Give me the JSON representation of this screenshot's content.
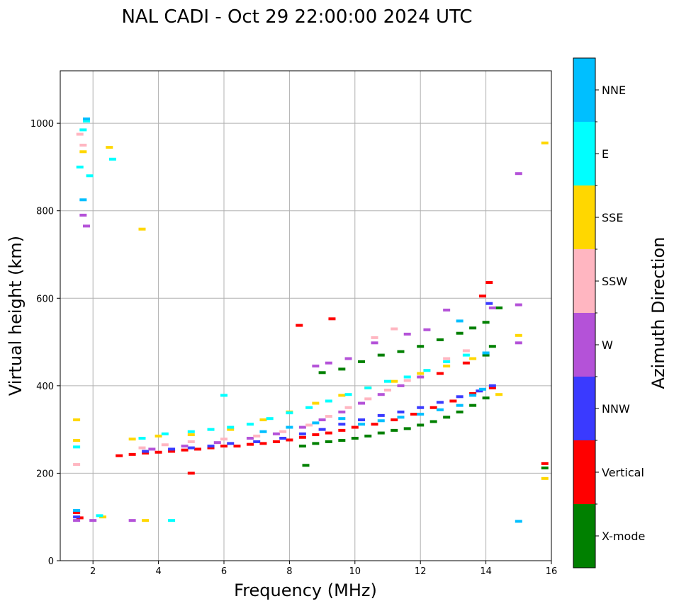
{
  "chart_data": {
    "type": "scatter",
    "title": "NAL CADI - Oct 29 22:00:00 2024 UTC",
    "xlabel": "Frequency (MHz)",
    "ylabel": "Virtual height (km)",
    "xlim": [
      1.0,
      16.0
    ],
    "ylim": [
      0,
      1120
    ],
    "xticks": [
      2,
      4,
      6,
      8,
      10,
      12,
      14,
      16
    ],
    "yticks": [
      0,
      200,
      400,
      600,
      800,
      1000
    ],
    "grid": true,
    "colorbar": {
      "label": "Azimuth Direction",
      "categories": [
        {
          "name": "X-mode",
          "color": "#008000"
        },
        {
          "name": "Vertical",
          "color": "#ff0000"
        },
        {
          "name": "NNW",
          "color": "#3a3aff"
        },
        {
          "name": "W",
          "color": "#b452d8"
        },
        {
          "name": "SSW",
          "color": "#ffb6c1"
        },
        {
          "name": "SSE",
          "color": "#ffd700"
        },
        {
          "name": "E",
          "color": "#00ffff"
        },
        {
          "name": "NNE",
          "color": "#00bfff"
        }
      ]
    },
    "series": [
      {
        "name": "X-mode",
        "points": [
          [
            8.4,
            262
          ],
          [
            8.8,
            268
          ],
          [
            9.2,
            272
          ],
          [
            9.6,
            275
          ],
          [
            10.0,
            280
          ],
          [
            10.4,
            285
          ],
          [
            10.8,
            292
          ],
          [
            11.2,
            298
          ],
          [
            11.6,
            302
          ],
          [
            12.0,
            310
          ],
          [
            12.4,
            318
          ],
          [
            12.8,
            328
          ],
          [
            13.2,
            340
          ],
          [
            13.6,
            355
          ],
          [
            14.0,
            372
          ],
          [
            9.0,
            430
          ],
          [
            9.6,
            438
          ],
          [
            10.2,
            455
          ],
          [
            10.8,
            470
          ],
          [
            11.4,
            478
          ],
          [
            12.0,
            490
          ],
          [
            12.6,
            505
          ],
          [
            13.2,
            520
          ],
          [
            13.6,
            532
          ],
          [
            14.0,
            545
          ],
          [
            14.4,
            578
          ],
          [
            14.0,
            470
          ],
          [
            14.2,
            490
          ],
          [
            8.5,
            218
          ],
          [
            15.8,
            212
          ]
        ]
      },
      {
        "name": "Vertical",
        "points": [
          [
            2.8,
            240
          ],
          [
            3.2,
            243
          ],
          [
            3.6,
            246
          ],
          [
            4.0,
            248
          ],
          [
            4.4,
            250
          ],
          [
            4.8,
            253
          ],
          [
            5.2,
            255
          ],
          [
            5.6,
            258
          ],
          [
            6.0,
            262
          ],
          [
            6.4,
            262
          ],
          [
            6.8,
            266
          ],
          [
            7.2,
            268
          ],
          [
            7.6,
            272
          ],
          [
            8.0,
            276
          ],
          [
            8.4,
            282
          ],
          [
            8.8,
            288
          ],
          [
            9.2,
            292
          ],
          [
            9.6,
            298
          ],
          [
            10.0,
            305
          ],
          [
            10.6,
            312
          ],
          [
            11.2,
            322
          ],
          [
            11.8,
            335
          ],
          [
            12.4,
            350
          ],
          [
            13.0,
            365
          ],
          [
            13.6,
            382
          ],
          [
            14.2,
            395
          ],
          [
            8.3,
            538
          ],
          [
            9.3,
            553
          ],
          [
            13.9,
            605
          ],
          [
            14.1,
            636
          ],
          [
            12.6,
            428
          ],
          [
            13.4,
            452
          ],
          [
            1.5,
            110
          ],
          [
            1.6,
            98
          ],
          [
            15.8,
            222
          ],
          [
            5.0,
            200
          ]
        ]
      },
      {
        "name": "NNW",
        "points": [
          [
            3.6,
            250
          ],
          [
            4.4,
            255
          ],
          [
            5.0,
            258
          ],
          [
            5.6,
            262
          ],
          [
            6.2,
            268
          ],
          [
            7.0,
            272
          ],
          [
            7.8,
            280
          ],
          [
            8.4,
            290
          ],
          [
            9.0,
            300
          ],
          [
            9.6,
            312
          ],
          [
            10.2,
            322
          ],
          [
            10.8,
            332
          ],
          [
            11.4,
            340
          ],
          [
            12.0,
            350
          ],
          [
            12.6,
            362
          ],
          [
            13.2,
            375
          ],
          [
            13.8,
            388
          ],
          [
            14.2,
            400
          ],
          [
            14.1,
            588
          ],
          [
            1.5,
            100
          ]
        ]
      },
      {
        "name": "W",
        "points": [
          [
            3.8,
            255
          ],
          [
            4.8,
            262
          ],
          [
            5.8,
            270
          ],
          [
            6.8,
            280
          ],
          [
            7.6,
            290
          ],
          [
            8.4,
            305
          ],
          [
            9.0,
            322
          ],
          [
            9.6,
            340
          ],
          [
            10.2,
            360
          ],
          [
            10.8,
            380
          ],
          [
            11.4,
            400
          ],
          [
            12.0,
            420
          ],
          [
            8.8,
            445
          ],
          [
            9.2,
            452
          ],
          [
            9.8,
            462
          ],
          [
            10.6,
            498
          ],
          [
            11.6,
            518
          ],
          [
            12.2,
            528
          ],
          [
            12.8,
            573
          ],
          [
            14.2,
            578
          ],
          [
            15.0,
            585
          ],
          [
            15.0,
            498
          ],
          [
            15.0,
            885
          ],
          [
            1.8,
            765
          ],
          [
            1.7,
            790
          ],
          [
            1.5,
            92
          ],
          [
            3.2,
            92
          ],
          [
            2.0,
            92
          ]
        ]
      },
      {
        "name": "SSW",
        "points": [
          [
            3.5,
            258
          ],
          [
            4.2,
            265
          ],
          [
            5.0,
            272
          ],
          [
            6.0,
            278
          ],
          [
            7.0,
            285
          ],
          [
            7.8,
            295
          ],
          [
            8.6,
            310
          ],
          [
            9.2,
            330
          ],
          [
            9.8,
            350
          ],
          [
            10.4,
            370
          ],
          [
            11.0,
            390
          ],
          [
            11.6,
            412
          ],
          [
            12.2,
            435
          ],
          [
            12.8,
            462
          ],
          [
            13.4,
            480
          ],
          [
            10.6,
            510
          ],
          [
            11.2,
            530
          ],
          [
            1.7,
            950
          ],
          [
            1.6,
            975
          ],
          [
            1.5,
            220
          ]
        ]
      },
      {
        "name": "SSE",
        "points": [
          [
            3.2,
            278
          ],
          [
            4.0,
            285
          ],
          [
            5.0,
            288
          ],
          [
            6.2,
            300
          ],
          [
            7.2,
            322
          ],
          [
            8.0,
            340
          ],
          [
            8.8,
            360
          ],
          [
            9.6,
            378
          ],
          [
            10.4,
            395
          ],
          [
            11.2,
            410
          ],
          [
            12.0,
            428
          ],
          [
            12.8,
            445
          ],
          [
            13.6,
            462
          ],
          [
            14.4,
            380
          ],
          [
            15.0,
            515
          ],
          [
            15.8,
            955
          ],
          [
            15.8,
            188
          ],
          [
            3.5,
            758
          ],
          [
            2.5,
            945
          ],
          [
            1.7,
            935
          ],
          [
            1.5,
            275
          ],
          [
            1.5,
            322
          ],
          [
            3.6,
            92
          ],
          [
            2.3,
            100
          ]
        ]
      },
      {
        "name": "E",
        "points": [
          [
            3.5,
            280
          ],
          [
            4.2,
            290
          ],
          [
            5.0,
            295
          ],
          [
            5.6,
            300
          ],
          [
            6.2,
            305
          ],
          [
            6.8,
            312
          ],
          [
            7.4,
            325
          ],
          [
            8.0,
            338
          ],
          [
            8.6,
            350
          ],
          [
            9.2,
            365
          ],
          [
            9.8,
            380
          ],
          [
            10.4,
            395
          ],
          [
            11.0,
            410
          ],
          [
            11.6,
            420
          ],
          [
            12.2,
            435
          ],
          [
            12.8,
            455
          ],
          [
            13.4,
            470
          ],
          [
            6.0,
            378
          ],
          [
            1.8,
            1005
          ],
          [
            1.7,
            985
          ],
          [
            2.6,
            918
          ],
          [
            1.6,
            900
          ],
          [
            1.5,
            260
          ],
          [
            2.2,
            103
          ],
          [
            4.4,
            92
          ],
          [
            1.9,
            880
          ]
        ]
      },
      {
        "name": "NNE",
        "points": [
          [
            7.2,
            295
          ],
          [
            8.0,
            305
          ],
          [
            8.8,
            315
          ],
          [
            9.6,
            325
          ],
          [
            10.2,
            312
          ],
          [
            10.8,
            320
          ],
          [
            11.4,
            328
          ],
          [
            12.0,
            335
          ],
          [
            12.6,
            345
          ],
          [
            13.2,
            355
          ],
          [
            13.6,
            378
          ],
          [
            13.9,
            392
          ],
          [
            13.2,
            548
          ],
          [
            14.0,
            475
          ],
          [
            1.8,
            1010
          ],
          [
            1.7,
            825
          ],
          [
            1.5,
            115
          ],
          [
            15.0,
            90
          ]
        ]
      }
    ]
  }
}
